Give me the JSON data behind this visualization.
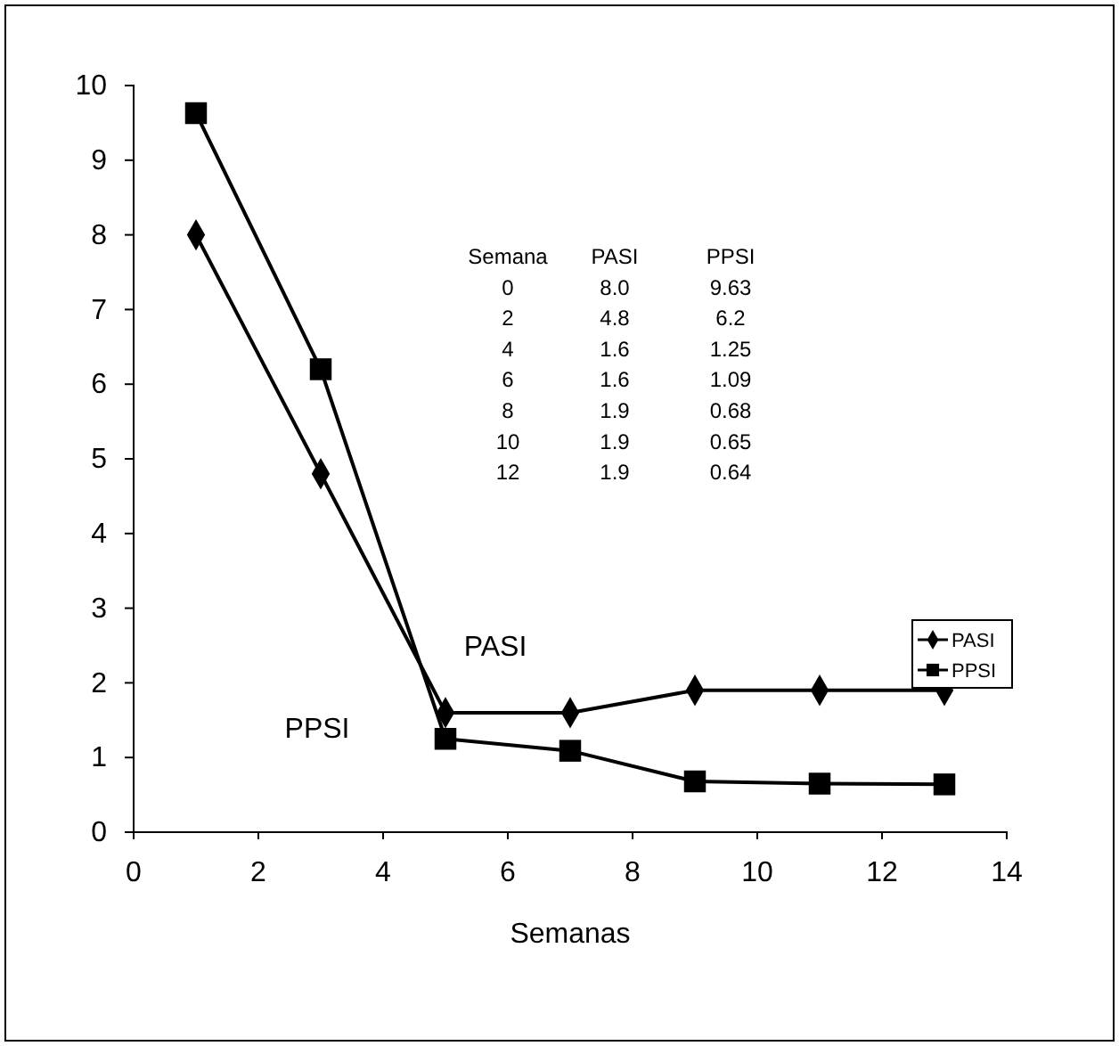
{
  "chart_data": {
    "type": "line",
    "xlabel": "Semanas",
    "xlim": [
      0,
      14
    ],
    "xticks": [
      0,
      2,
      4,
      6,
      8,
      10,
      12,
      14
    ],
    "ylim": [
      0,
      10
    ],
    "yticks": [
      0,
      1,
      2,
      3,
      4,
      5,
      6,
      7,
      8,
      9,
      10
    ],
    "grid": false,
    "legend": "right",
    "x": [
      1,
      3,
      5,
      7,
      9,
      11,
      13
    ],
    "series": [
      {
        "name": "PASI",
        "color": "#000000",
        "marker": "diamond",
        "values": [
          8.0,
          4.8,
          1.6,
          1.6,
          1.9,
          1.9,
          1.9
        ]
      },
      {
        "name": "PPSI",
        "color": "#000000",
        "marker": "square",
        "values": [
          9.63,
          6.2,
          1.25,
          1.09,
          0.68,
          0.65,
          0.64
        ]
      }
    ],
    "annotations": [
      "Semana",
      "PASI",
      "PPSI",
      "0",
      "8.0",
      "9.63",
      "2",
      "4.8",
      "6.2",
      "4",
      "1.6",
      "1.25",
      "6",
      "1.6",
      "1.09",
      "8",
      "1.9",
      "0.68",
      "10",
      "1.9",
      "0.65",
      "12",
      "1.9",
      "0.64",
      "PASI",
      "PPSI"
    ]
  }
}
